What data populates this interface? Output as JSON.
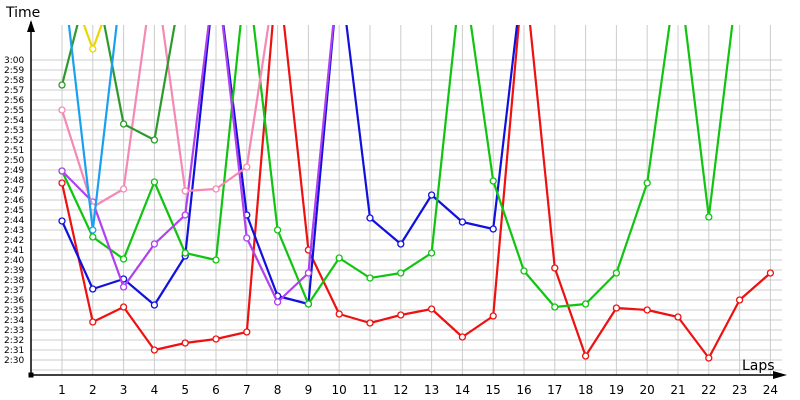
{
  "chart_data": {
    "type": "line",
    "title": "",
    "xlabel": "Laps",
    "ylabel": "Time",
    "x": [
      1,
      2,
      3,
      4,
      5,
      6,
      7,
      8,
      9,
      10,
      11,
      12,
      13,
      14,
      15,
      16,
      17,
      18,
      19,
      20,
      21,
      22,
      23,
      24
    ],
    "y_tick_labels": [
      "3:00",
      "2:59",
      "2:58",
      "2:57",
      "2:56",
      "2:55",
      "2:54",
      "2:53",
      "2:52",
      "2:51",
      "2:50",
      "2:49",
      "2:48",
      "2:47",
      "2:46",
      "2:45",
      "2:44",
      "2:43",
      "2:42",
      "2:41",
      "2:40",
      "2:39",
      "2:38",
      "2:37",
      "2:36",
      "2:35",
      "2:34",
      "2:33",
      "2:32",
      "2:31",
      "2:30"
    ],
    "x_tick_labels": [
      "1",
      "2",
      "3",
      "4",
      "5",
      "6",
      "7",
      "8",
      "9",
      "10",
      "11",
      "12",
      "13",
      "14",
      "15",
      "16",
      "17",
      "18",
      "19",
      "20",
      "21",
      "22",
      "23",
      "24"
    ],
    "ylim_seconds": [
      150,
      180
    ],
    "y_unit": "seconds (lap time, 2:30 = 150)",
    "grid": true,
    "legend": "none",
    "note": "null = lap time above 3:00 (line exits top of plot)",
    "series": [
      {
        "name": "red",
        "color": "#ee1111",
        "values": [
          167.7,
          153.8,
          155.3,
          151.0,
          151.7,
          152.1,
          152.8,
          null,
          161.0,
          154.6,
          153.7,
          154.5,
          155.1,
          152.3,
          154.4,
          null,
          159.2,
          150.4,
          155.2,
          155.0,
          154.3,
          150.2,
          156.0,
          158.7
        ]
      },
      {
        "name": "blue",
        "color": "#1111dd",
        "values": [
          163.9,
          157.1,
          158.1,
          155.5,
          160.4,
          null,
          164.5,
          156.4,
          155.6,
          null,
          164.2,
          161.6,
          166.5,
          163.8,
          163.1,
          null,
          null,
          null,
          null,
          null,
          null,
          null,
          null,
          null
        ]
      },
      {
        "name": "green",
        "color": "#11c411",
        "values": [
          168.9,
          162.3,
          160.1,
          167.8,
          160.7,
          160.0,
          null,
          163.0,
          155.6,
          160.2,
          158.2,
          158.7,
          160.7,
          null,
          167.9,
          158.9,
          155.3,
          155.6,
          158.7,
          167.7,
          null,
          164.3,
          null,
          null
        ]
      },
      {
        "name": "purple",
        "color": "#b040f0",
        "values": [
          168.9,
          165.8,
          157.3,
          161.6,
          164.5,
          null,
          162.2,
          155.8,
          158.7,
          null,
          null,
          null,
          null,
          null,
          null,
          null,
          null,
          null,
          null,
          null,
          null,
          null,
          null,
          null
        ]
      },
      {
        "name": "pink",
        "color": "#f48ab4",
        "values": [
          175.0,
          165.3,
          167.1,
          null,
          166.9,
          167.1,
          169.3,
          null,
          null,
          null,
          null,
          null,
          null,
          null,
          null,
          null,
          null,
          null,
          null,
          null,
          null,
          null,
          null,
          null
        ]
      },
      {
        "name": "dark-green",
        "color": "#2e9a2e",
        "values": [
          177.5,
          null,
          173.6,
          172.0,
          null,
          null,
          null,
          null,
          null,
          null,
          null,
          null,
          null,
          null,
          null,
          null,
          null,
          null,
          null,
          null,
          null,
          null,
          null,
          null
        ]
      },
      {
        "name": "light-blue",
        "color": "#1aa0f0",
        "values": [
          null,
          163.0,
          null,
          null,
          null,
          null,
          null,
          null,
          null,
          null,
          null,
          null,
          null,
          null,
          null,
          null,
          null,
          null,
          null,
          null,
          null,
          null,
          null,
          null
        ]
      },
      {
        "name": "yellow",
        "color": "#e8d800",
        "values": [
          null,
          181.1,
          null,
          null,
          null,
          null,
          null,
          null,
          null,
          null,
          null,
          null,
          null,
          null,
          null,
          null,
          null,
          null,
          null,
          null,
          null,
          null,
          null,
          null
        ]
      }
    ]
  },
  "colors": {
    "grid": "#cccccc",
    "axis": "#000000",
    "background": "#ffffff"
  }
}
